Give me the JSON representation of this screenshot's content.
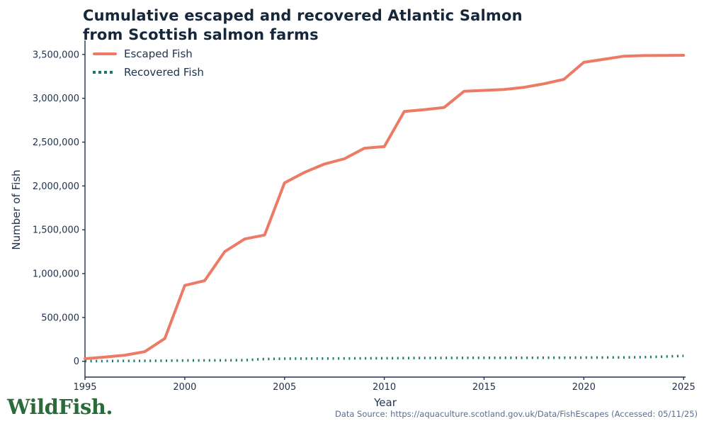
{
  "title": "Cumulative escaped and recovered Atlantic Salmon\nfrom Scottish salmon farms",
  "footer": {
    "logo": "WildFish.",
    "source": "Data Source: https://aquaculture.scotland.gov.uk/Data/FishEscapes (Accessed: 05/11/25)"
  },
  "colors": {
    "escaped": "#ec7a64",
    "recovered": "#17796e",
    "axis": "#22334d",
    "title": "#16273c",
    "source_text": "#5d6c8d",
    "logo_green": "#2a6b3a"
  },
  "chart_data": {
    "type": "line",
    "title": "Cumulative escaped and recovered Atlantic Salmon from Scottish salmon farms",
    "xlabel": "Year",
    "ylabel": "Number of Fish",
    "grid": false,
    "legend_position": "upper-left",
    "x": [
      1995,
      1996,
      1997,
      1998,
      1999,
      2000,
      2001,
      2002,
      2003,
      2004,
      2005,
      2006,
      2007,
      2008,
      2009,
      2010,
      2011,
      2012,
      2013,
      2014,
      2015,
      2016,
      2017,
      2018,
      2019,
      2020,
      2021,
      2022,
      2023,
      2024,
      2025
    ],
    "series": [
      {
        "name": "Escaped Fish",
        "color": "#ec7a64",
        "style": "solid",
        "values": [
          30000,
          48000,
          70000,
          110000,
          260000,
          865000,
          920000,
          1250000,
          1395000,
          1440000,
          2035000,
          2155000,
          2250000,
          2310000,
          2430000,
          2450000,
          2850000,
          2870000,
          2895000,
          3080000,
          3090000,
          3100000,
          3125000,
          3165000,
          3215000,
          3410000,
          3445000,
          3480000,
          3487000,
          3488000,
          3490000
        ]
      },
      {
        "name": "Recovered Fish",
        "color": "#17796e",
        "style": "dotted",
        "values": [
          2000,
          3000,
          4000,
          5000,
          7000,
          9000,
          10000,
          11000,
          13000,
          26000,
          30000,
          31000,
          32000,
          33000,
          34000,
          35000,
          37000,
          38000,
          38000,
          39000,
          40000,
          40000,
          40000,
          41000,
          41000,
          42000,
          43000,
          44000,
          47000,
          54000,
          62000
        ]
      }
    ],
    "xticks": [
      1995,
      2000,
      2005,
      2010,
      2015,
      2020,
      2025
    ],
    "yticks": [
      0,
      500000,
      1000000,
      1500000,
      2000000,
      2500000,
      3000000,
      3500000
    ],
    "xlim": [
      1995,
      2025.1
    ],
    "ylim": [
      -180000,
      3660000
    ]
  }
}
